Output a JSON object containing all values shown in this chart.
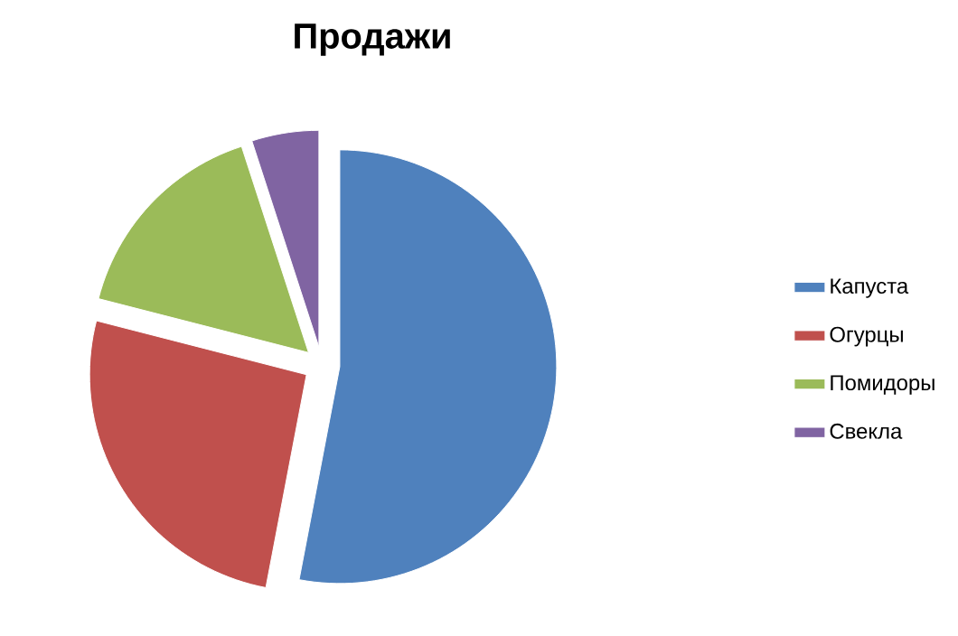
{
  "chart_data": {
    "type": "pie",
    "title": "Продажи",
    "categories": [
      "Капуста",
      "Огурцы",
      "Помидоры",
      "Свекла"
    ],
    "values": [
      53,
      26,
      16,
      5
    ],
    "colors": [
      "#4f81bd",
      "#c0504d",
      "#9bbb59",
      "#8064a2"
    ],
    "legend": "right"
  }
}
